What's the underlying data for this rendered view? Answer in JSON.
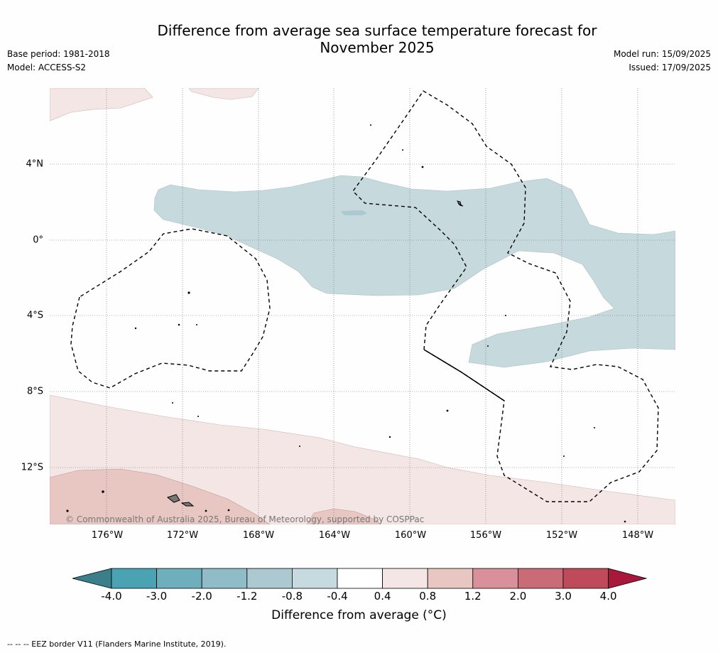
{
  "title": {
    "line1": "Difference from average sea surface temperature forecast for",
    "line2": "November 2025"
  },
  "meta": {
    "base_period": "Base period: 1981-2018",
    "model": "Model: ACCESS-S2",
    "model_run": "Model run: 15/09/2025",
    "issued": "Issued: 17/09/2025"
  },
  "map": {
    "lat_labels": [
      "4°N",
      "0°",
      "4°S",
      "8°S",
      "12°S"
    ],
    "lon_labels": [
      "176°W",
      "172°W",
      "168°W",
      "164°W",
      "160°W",
      "156°W",
      "152°W",
      "148°W"
    ],
    "credit": "© Commonwealth of Australia 2025, Bureau of Meteorology, supported by COSPPac",
    "colors": {
      "negative_0_4_to_0_8": "#c6d9dd",
      "positive_0_4_to_0_8": "#f4e6e5",
      "positive_0_8_to_1_2": "#e8c7c3",
      "eez_border": "#000000"
    }
  },
  "colorbar": {
    "labels": [
      "-4.0",
      "-3.0",
      "-2.0",
      "-1.2",
      "-0.8",
      "-0.4",
      "0.4",
      "0.8",
      "1.2",
      "2.0",
      "3.0",
      "4.0"
    ],
    "colors": [
      "#4aa3b3",
      "#6eafbd",
      "#90bcc7",
      "#acc8d0",
      "#c7dadf",
      "#ffffff",
      "#f4e6e5",
      "#e8c7c3",
      "#d9909a",
      "#c96c77",
      "#bf4a5a"
    ],
    "under_color": "#3b7f8b",
    "over_color": "#a8183a",
    "title": "Difference from average (°C)"
  },
  "eez_note": "-- -- -- EEZ border V11 (Flanders Marine Institute, 2019)."
}
